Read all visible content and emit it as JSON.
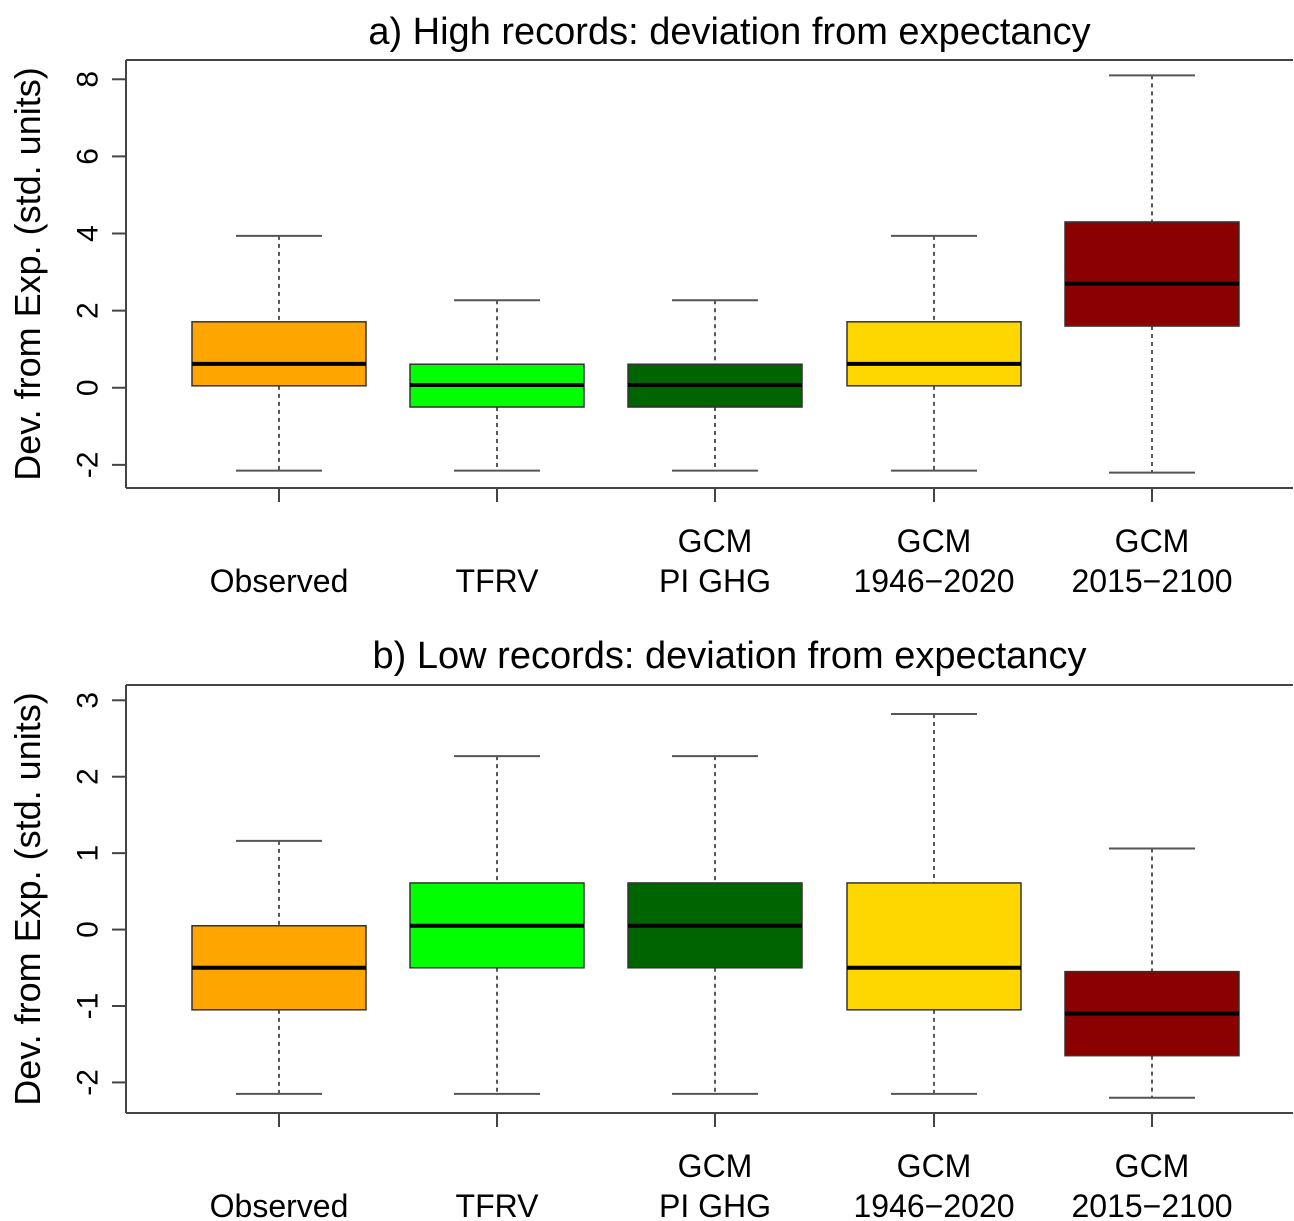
{
  "chart_data": [
    {
      "type": "boxplot",
      "title": "a) High records: deviation from expectancy",
      "ylabel": "Dev. from Exp. (std. units)",
      "xlabel": "",
      "ylim": [
        -2.6,
        8.5
      ],
      "yticks": [
        -2,
        0,
        2,
        4,
        6,
        8
      ],
      "grid": false,
      "categories": [
        {
          "line1": "",
          "line2": "Observed"
        },
        {
          "line1": "",
          "line2": "TFRV"
        },
        {
          "line1": "GCM",
          "line2": "PI GHG"
        },
        {
          "line1": "GCM",
          "line2": "1946−2020"
        },
        {
          "line1": "GCM",
          "line2": "2015−2100"
        }
      ],
      "colors": [
        "#FFA500",
        "#00FF00",
        "#006400",
        "#FFD700",
        "#8B0000"
      ],
      "boxes": [
        {
          "whisker_low": -2.15,
          "q1": 0.05,
          "median": 0.62,
          "q3": 1.71,
          "whisker_high": 3.94
        },
        {
          "whisker_low": -2.15,
          "q1": -0.5,
          "median": 0.07,
          "q3": 0.61,
          "whisker_high": 2.27
        },
        {
          "whisker_low": -2.15,
          "q1": -0.5,
          "median": 0.07,
          "q3": 0.61,
          "whisker_high": 2.27
        },
        {
          "whisker_low": -2.15,
          "q1": 0.05,
          "median": 0.62,
          "q3": 1.71,
          "whisker_high": 3.94
        },
        {
          "whisker_low": -2.2,
          "q1": 1.6,
          "median": 2.7,
          "q3": 4.3,
          "whisker_high": 8.1
        }
      ]
    },
    {
      "type": "boxplot",
      "title": "b) Low records: deviation from expectancy",
      "ylabel": "Dev. from Exp. (std. units)",
      "xlabel": "",
      "ylim": [
        -2.4,
        3.2
      ],
      "yticks": [
        -2,
        -1,
        0,
        1,
        2,
        3
      ],
      "grid": false,
      "categories": [
        {
          "line1": "",
          "line2": "Observed"
        },
        {
          "line1": "",
          "line2": "TFRV"
        },
        {
          "line1": "GCM",
          "line2": "PI GHG"
        },
        {
          "line1": "GCM",
          "line2": "1946−2020"
        },
        {
          "line1": "GCM",
          "line2": "2015−2100"
        }
      ],
      "colors": [
        "#FFA500",
        "#00FF00",
        "#006400",
        "#FFD700",
        "#8B0000"
      ],
      "boxes": [
        {
          "whisker_low": -2.15,
          "q1": -1.05,
          "median": -0.5,
          "q3": 0.05,
          "whisker_high": 1.16
        },
        {
          "whisker_low": -2.15,
          "q1": -0.5,
          "median": 0.05,
          "q3": 0.61,
          "whisker_high": 2.27
        },
        {
          "whisker_low": -2.15,
          "q1": -0.5,
          "median": 0.05,
          "q3": 0.61,
          "whisker_high": 2.27
        },
        {
          "whisker_low": -2.15,
          "q1": -1.05,
          "median": -0.5,
          "q3": 0.61,
          "whisker_high": 2.82
        },
        {
          "whisker_low": -2.2,
          "q1": -1.65,
          "median": -1.1,
          "q3": -0.55,
          "whisker_high": 1.06
        }
      ]
    }
  ]
}
